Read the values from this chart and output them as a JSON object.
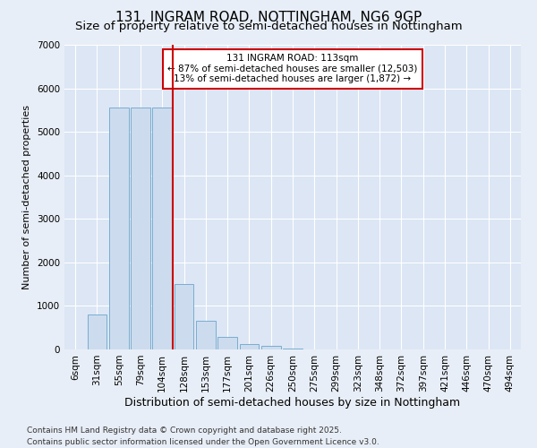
{
  "title1": "131, INGRAM ROAD, NOTTINGHAM, NG6 9GP",
  "title2": "Size of property relative to semi-detached houses in Nottingham",
  "xlabel": "Distribution of semi-detached houses by size in Nottingham",
  "ylabel": "Number of semi-detached properties",
  "categories": [
    "6sqm",
    "31sqm",
    "55sqm",
    "79sqm",
    "104sqm",
    "128sqm",
    "153sqm",
    "177sqm",
    "201sqm",
    "226sqm",
    "250sqm",
    "275sqm",
    "299sqm",
    "323sqm",
    "348sqm",
    "372sqm",
    "397sqm",
    "421sqm",
    "446sqm",
    "470sqm",
    "494sqm"
  ],
  "values": [
    0,
    800,
    5550,
    5550,
    5550,
    1500,
    650,
    280,
    130,
    80,
    30,
    0,
    0,
    0,
    0,
    0,
    0,
    0,
    0,
    0,
    0
  ],
  "bar_color": "#ccdcee",
  "bar_edge_color": "#7aadcf",
  "vline_x": 4.5,
  "vline_color": "#cc0000",
  "annotation_text": "131 INGRAM ROAD: 113sqm\n← 87% of semi-detached houses are smaller (12,503)\n13% of semi-detached houses are larger (1,872) →",
  "annotation_box_color": "#ffffff",
  "annotation_box_edge": "#cc0000",
  "ylim": [
    0,
    7000
  ],
  "yticks": [
    0,
    1000,
    2000,
    3000,
    4000,
    5000,
    6000,
    7000
  ],
  "background_color": "#e8eef7",
  "plot_bg_color": "#dce6f5",
  "footer": "Contains HM Land Registry data © Crown copyright and database right 2025.\nContains public sector information licensed under the Open Government Licence v3.0.",
  "title1_fontsize": 11,
  "title2_fontsize": 9.5,
  "xlabel_fontsize": 9,
  "ylabel_fontsize": 8,
  "tick_fontsize": 7.5,
  "footer_fontsize": 6.5
}
